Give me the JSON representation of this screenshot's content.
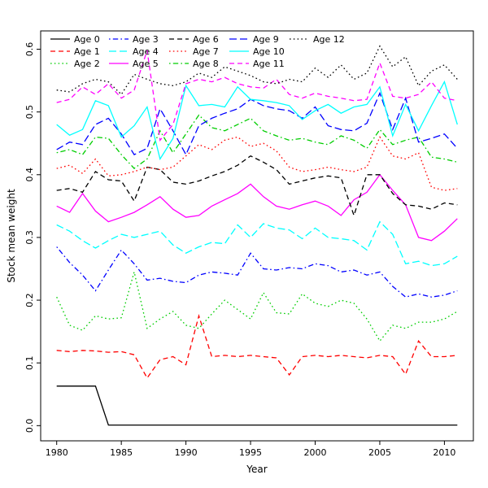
{
  "chart_data": {
    "type": "line",
    "title": "",
    "xlabel": "Year",
    "ylabel": "Stock mean weight",
    "xlim": [
      1978.76,
      2012.24
    ],
    "ylim": [
      -0.0242,
      0.6292
    ],
    "x_ticks": [
      1980,
      1985,
      1990,
      1995,
      2000,
      2005,
      2010
    ],
    "x_tick_labels": [
      "1980",
      "1985",
      "1990",
      "1995",
      "2000",
      "2005",
      "2010"
    ],
    "y_ticks": [
      0.0,
      0.1,
      0.2,
      0.3,
      0.4,
      0.5,
      0.6
    ],
    "y_tick_labels": [
      "0.0",
      "0.1",
      "0.2",
      "0.3",
      "0.4",
      "0.5",
      "0.6"
    ],
    "grid": false,
    "legend_position": "top-inside",
    "frame_color": "#000000",
    "x": [
      1980,
      1981,
      1982,
      1983,
      1984,
      1985,
      1986,
      1987,
      1988,
      1989,
      1990,
      1991,
      1992,
      1993,
      1994,
      1995,
      1996,
      1997,
      1998,
      1999,
      2000,
      2001,
      2002,
      2003,
      2004,
      2005,
      2006,
      2007,
      2008,
      2009,
      2010,
      2011
    ],
    "series": [
      {
        "name": "Age 0",
        "color": "#000000",
        "linestyle": "solid",
        "values": [
          0.063,
          0.063,
          0.063,
          0.063,
          0.001,
          0.001,
          0.001,
          0.001,
          0.001,
          0.001,
          0.001,
          0.001,
          0.001,
          0.001,
          0.001,
          0.001,
          0.001,
          0.001,
          0.001,
          0.001,
          0.001,
          0.001,
          0.001,
          0.001,
          0.001,
          0.001,
          0.001,
          0.001,
          0.001,
          0.001,
          0.001,
          0.001
        ]
      },
      {
        "name": "Age 1",
        "color": "#FF0000",
        "linestyle": "dashed",
        "values": [
          0.12,
          0.118,
          0.12,
          0.119,
          0.117,
          0.118,
          0.113,
          0.076,
          0.105,
          0.11,
          0.097,
          0.175,
          0.11,
          0.112,
          0.11,
          0.112,
          0.11,
          0.108,
          0.081,
          0.11,
          0.112,
          0.11,
          0.112,
          0.11,
          0.108,
          0.112,
          0.11,
          0.082,
          0.135,
          0.11,
          0.11,
          0.112
        ]
      },
      {
        "name": "Age 2",
        "color": "#00CD00",
        "linestyle": "dotted",
        "values": [
          0.205,
          0.16,
          0.152,
          0.175,
          0.17,
          0.172,
          0.245,
          0.155,
          0.17,
          0.182,
          0.16,
          0.155,
          0.178,
          0.2,
          0.185,
          0.17,
          0.212,
          0.18,
          0.178,
          0.21,
          0.195,
          0.19,
          0.2,
          0.195,
          0.17,
          0.135,
          0.16,
          0.155,
          0.165,
          0.165,
          0.17,
          0.182
        ]
      },
      {
        "name": "Age 3",
        "color": "#0000FF",
        "linestyle": "dotdash",
        "values": [
          0.285,
          0.26,
          0.24,
          0.215,
          0.248,
          0.28,
          0.258,
          0.232,
          0.235,
          0.23,
          0.228,
          0.24,
          0.245,
          0.243,
          0.24,
          0.275,
          0.25,
          0.248,
          0.252,
          0.25,
          0.258,
          0.255,
          0.245,
          0.248,
          0.24,
          0.245,
          0.222,
          0.205,
          0.21,
          0.205,
          0.208,
          0.215
        ]
      },
      {
        "name": "Age 4",
        "color": "#00FFFF",
        "linestyle": "longdash",
        "values": [
          0.32,
          0.31,
          0.295,
          0.283,
          0.295,
          0.305,
          0.3,
          0.305,
          0.31,
          0.288,
          0.275,
          0.285,
          0.292,
          0.29,
          0.32,
          0.3,
          0.322,
          0.315,
          0.312,
          0.298,
          0.315,
          0.3,
          0.298,
          0.295,
          0.28,
          0.325,
          0.305,
          0.258,
          0.262,
          0.255,
          0.258,
          0.27
        ]
      },
      {
        "name": "Age 5",
        "color": "#FF00FF",
        "linestyle": "solid",
        "values": [
          0.35,
          0.34,
          0.37,
          0.342,
          0.325,
          0.332,
          0.34,
          0.352,
          0.365,
          0.345,
          0.332,
          0.335,
          0.35,
          0.36,
          0.37,
          0.385,
          0.365,
          0.35,
          0.345,
          0.352,
          0.358,
          0.35,
          0.335,
          0.36,
          0.372,
          0.4,
          0.375,
          0.352,
          0.3,
          0.295,
          0.31,
          0.33
        ]
      },
      {
        "name": "Age 6",
        "color": "#000000",
        "linestyle": "dashed",
        "values": [
          0.375,
          0.378,
          0.372,
          0.405,
          0.392,
          0.39,
          0.358,
          0.412,
          0.408,
          0.388,
          0.385,
          0.39,
          0.398,
          0.405,
          0.415,
          0.43,
          0.42,
          0.408,
          0.385,
          0.39,
          0.395,
          0.398,
          0.395,
          0.335,
          0.4,
          0.4,
          0.37,
          0.352,
          0.35,
          0.345,
          0.355,
          0.352
        ]
      },
      {
        "name": "Age 7",
        "color": "#FF0000",
        "linestyle": "dotted",
        "values": [
          0.41,
          0.415,
          0.402,
          0.425,
          0.398,
          0.4,
          0.405,
          0.412,
          0.408,
          0.412,
          0.43,
          0.448,
          0.44,
          0.455,
          0.46,
          0.445,
          0.45,
          0.438,
          0.412,
          0.405,
          0.408,
          0.412,
          0.408,
          0.405,
          0.412,
          0.46,
          0.43,
          0.425,
          0.435,
          0.38,
          0.375,
          0.378
        ]
      },
      {
        "name": "Age 8",
        "color": "#00CD00",
        "linestyle": "dotdash",
        "values": [
          0.435,
          0.44,
          0.432,
          0.46,
          0.458,
          0.432,
          0.41,
          0.425,
          0.47,
          0.435,
          0.465,
          0.495,
          0.475,
          0.47,
          0.48,
          0.49,
          0.47,
          0.462,
          0.455,
          0.458,
          0.452,
          0.448,
          0.462,
          0.455,
          0.442,
          0.472,
          0.448,
          0.455,
          0.46,
          0.428,
          0.425,
          0.42
        ]
      },
      {
        "name": "Age 9",
        "color": "#0000FF",
        "linestyle": "longdash",
        "values": [
          0.44,
          0.452,
          0.448,
          0.48,
          0.49,
          0.465,
          0.432,
          0.442,
          0.505,
          0.47,
          0.432,
          0.478,
          0.49,
          0.498,
          0.505,
          0.52,
          0.51,
          0.505,
          0.502,
          0.49,
          0.508,
          0.478,
          0.472,
          0.47,
          0.482,
          0.53,
          0.472,
          0.522,
          0.452,
          0.458,
          0.465,
          0.442
        ]
      },
      {
        "name": "Age 10",
        "color": "#00FFFF",
        "linestyle": "solid",
        "values": [
          0.48,
          0.463,
          0.472,
          0.518,
          0.51,
          0.46,
          0.478,
          0.508,
          0.425,
          0.458,
          0.542,
          0.51,
          0.512,
          0.508,
          0.54,
          0.52,
          0.518,
          0.515,
          0.51,
          0.488,
          0.502,
          0.512,
          0.498,
          0.508,
          0.512,
          0.54,
          0.462,
          0.512,
          0.47,
          0.51,
          0.548,
          0.48
        ]
      },
      {
        "name": "Age 11",
        "color": "#FF00FF",
        "linestyle": "dashed",
        "values": [
          0.515,
          0.52,
          0.54,
          0.528,
          0.545,
          0.522,
          0.535,
          0.598,
          0.455,
          0.48,
          0.545,
          0.552,
          0.548,
          0.555,
          0.545,
          0.54,
          0.538,
          0.552,
          0.528,
          0.522,
          0.53,
          0.525,
          0.522,
          0.518,
          0.52,
          0.578,
          0.525,
          0.522,
          0.528,
          0.548,
          0.522,
          0.518
        ]
      },
      {
        "name": "Age 12",
        "color": "#000000",
        "linestyle": "dotted",
        "values": [
          0.535,
          0.532,
          0.545,
          0.552,
          0.548,
          0.528,
          0.56,
          0.552,
          0.545,
          0.542,
          0.548,
          0.562,
          0.555,
          0.572,
          0.565,
          0.558,
          0.548,
          0.545,
          0.552,
          0.548,
          0.57,
          0.555,
          0.575,
          0.552,
          0.562,
          0.605,
          0.572,
          0.588,
          0.542,
          0.565,
          0.575,
          0.552
        ]
      }
    ]
  }
}
